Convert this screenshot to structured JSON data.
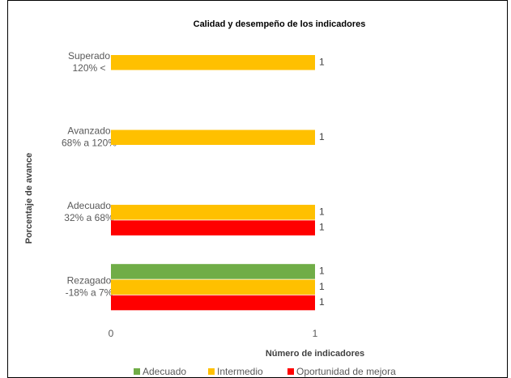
{
  "chart_data": {
    "type": "bar",
    "orientation": "horizontal",
    "title": "Calidad y desempeño de los indicadores",
    "xlabel": "Número de indicadores",
    "ylabel": "Porcentaje de avance",
    "categories": [
      [
        "Superado",
        "120% <"
      ],
      [
        "Avanzado",
        "68% a 120%"
      ],
      [
        "Adecuado",
        "32% a 68%"
      ],
      [
        "Rezagado",
        "-18% a 7%"
      ]
    ],
    "series": [
      {
        "name": "Adecuado",
        "color": "#70ad47",
        "values": [
          null,
          null,
          null,
          1
        ]
      },
      {
        "name": "Intermedio",
        "color": "#ffc000",
        "values": [
          1,
          1,
          1,
          1
        ]
      },
      {
        "name": "Oportunidad de mejora",
        "color": "#ff0000",
        "values": [
          null,
          null,
          1,
          1
        ]
      }
    ],
    "xlim": [
      0,
      2
    ],
    "xticks": [
      0,
      1
    ],
    "legend": "bottom"
  }
}
